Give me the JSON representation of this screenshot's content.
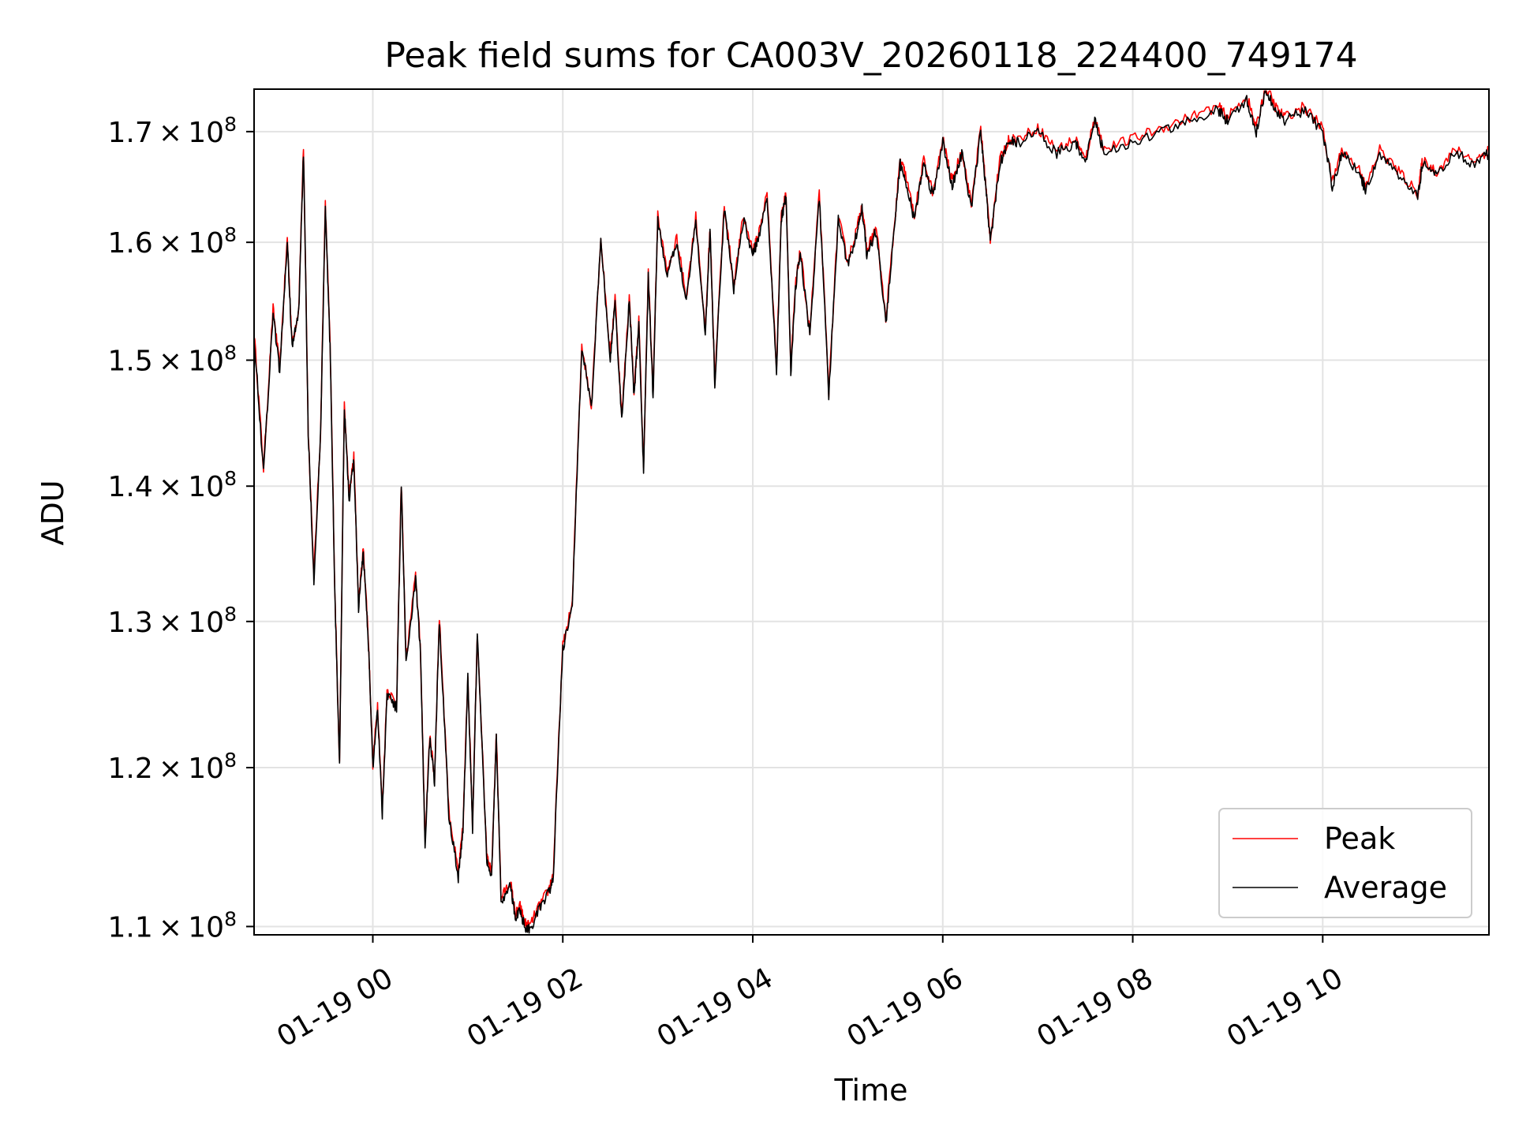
{
  "chart_data": {
    "type": "line",
    "title": "Peak field sums for CA003V_20260118_224400_749174",
    "xlabel": "Time",
    "ylabel": "ADU",
    "y_scale": "log",
    "ylim": [
      109500000,
      174000000
    ],
    "xlim_hours_from_0100_midnight": [
      -1.25,
      11.75
    ],
    "grid": true,
    "legend_position": "lower-right",
    "x_ticks": [
      {
        "hour": 0,
        "label": "01-19 00"
      },
      {
        "hour": 2,
        "label": "01-19 02"
      },
      {
        "hour": 4,
        "label": "01-19 04"
      },
      {
        "hour": 6,
        "label": "01-19 06"
      },
      {
        "hour": 8,
        "label": "01-19 08"
      },
      {
        "hour": 10,
        "label": "01-19 10"
      }
    ],
    "y_ticks": [
      {
        "value": 110000000,
        "mantissa": "1.1",
        "exponent": "8"
      },
      {
        "value": 120000000,
        "mantissa": "1.2",
        "exponent": "8"
      },
      {
        "value": 130000000,
        "mantissa": "1.3",
        "exponent": "8"
      },
      {
        "value": 140000000,
        "mantissa": "1.4",
        "exponent": "8"
      },
      {
        "value": 150000000,
        "mantissa": "1.5",
        "exponent": "8"
      },
      {
        "value": 160000000,
        "mantissa": "1.6",
        "exponent": "8"
      },
      {
        "value": 170000000,
        "mantissa": "1.7",
        "exponent": "8"
      }
    ],
    "series": [
      {
        "name": "Peak",
        "color": "#ff0000",
        "offset_fraction": 0.002
      },
      {
        "name": "Average",
        "color": "#000000",
        "offset_fraction": 0.0
      }
    ],
    "x_hours": [
      -1.25,
      -1.15,
      -1.05,
      -0.98,
      -0.9,
      -0.85,
      -0.78,
      -0.73,
      -0.68,
      -0.62,
      -0.55,
      -0.5,
      -0.45,
      -0.4,
      -0.35,
      -0.3,
      -0.25,
      -0.2,
      -0.15,
      -0.1,
      -0.05,
      0.0,
      0.05,
      0.1,
      0.15,
      0.25,
      0.3,
      0.35,
      0.45,
      0.5,
      0.55,
      0.6,
      0.65,
      0.7,
      0.8,
      0.9,
      0.95,
      1.0,
      1.05,
      1.1,
      1.2,
      1.25,
      1.3,
      1.35,
      1.45,
      1.5,
      1.55,
      1.6,
      1.65,
      1.75,
      1.85,
      1.9,
      2.0,
      2.1,
      2.2,
      2.3,
      2.4,
      2.5,
      2.55,
      2.62,
      2.7,
      2.75,
      2.8,
      2.85,
      2.9,
      2.95,
      3.0,
      3.1,
      3.2,
      3.3,
      3.4,
      3.5,
      3.55,
      3.6,
      3.7,
      3.8,
      3.9,
      4.0,
      4.05,
      4.15,
      4.25,
      4.3,
      4.35,
      4.4,
      4.45,
      4.5,
      4.6,
      4.7,
      4.8,
      4.9,
      5.0,
      5.1,
      5.15,
      5.2,
      5.3,
      5.4,
      5.5,
      5.55,
      5.6,
      5.7,
      5.8,
      5.9,
      6.0,
      6.1,
      6.2,
      6.3,
      6.4,
      6.45,
      6.5,
      6.6,
      6.7,
      6.8,
      7.0,
      7.2,
      7.4,
      7.5,
      7.6,
      7.7,
      8.0,
      8.3,
      8.6,
      8.9,
      9.0,
      9.2,
      9.3,
      9.4,
      9.5,
      9.6,
      9.8,
      10.0,
      10.1,
      10.2,
      10.4,
      10.45,
      10.6,
      10.8,
      11.0,
      11.05,
      11.2,
      11.4,
      11.6,
      11.75
    ],
    "average_values": [
      152000000,
      141000000,
      154000000,
      149000000,
      160000000,
      151000000,
      154000000,
      168000000,
      144000000,
      133000000,
      144000000,
      163000000,
      151000000,
      132000000,
      120000000,
      146000000,
      139000000,
      142000000,
      131000000,
      135000000,
      129000000,
      120000000,
      124000000,
      117000000,
      125000000,
      124000000,
      140000000,
      127000000,
      133000000,
      128000000,
      115000000,
      122000000,
      119000000,
      130000000,
      117000000,
      113000000,
      116000000,
      126000000,
      116000000,
      129000000,
      114000000,
      113000000,
      122000000,
      111500000,
      112500000,
      110500000,
      111000000,
      110000000,
      109800000,
      111000000,
      112000000,
      113000000,
      128000000,
      131000000,
      151000000,
      146000000,
      160000000,
      150000000,
      155000000,
      145000000,
      155000000,
      147000000,
      153000000,
      141000000,
      157000000,
      147000000,
      162000000,
      157000000,
      160000000,
      155000000,
      162000000,
      152000000,
      161000000,
      148000000,
      163000000,
      156000000,
      162000000,
      159000000,
      160000000,
      164000000,
      149000000,
      162000000,
      164000000,
      149000000,
      156000000,
      159000000,
      152000000,
      164000000,
      147000000,
      162000000,
      158000000,
      161000000,
      163000000,
      159000000,
      161000000,
      153000000,
      162000000,
      167000000,
      166000000,
      162000000,
      167000000,
      164000000,
      169000000,
      165000000,
      168000000,
      163000000,
      170000000,
      165000000,
      160000000,
      167000000,
      169000000,
      169000000,
      170000000,
      168000000,
      169000000,
      167000000,
      171000000,
      168000000,
      169000000,
      170000000,
      171000000,
      172000000,
      171000000,
      173000000,
      170000000,
      174000000,
      172000000,
      171000000,
      172000000,
      170000000,
      165000000,
      168000000,
      166000000,
      164500000,
      168000000,
      166000000,
      164000000,
      167000000,
      166000000,
      168000000,
      167000000,
      168000000
    ]
  }
}
